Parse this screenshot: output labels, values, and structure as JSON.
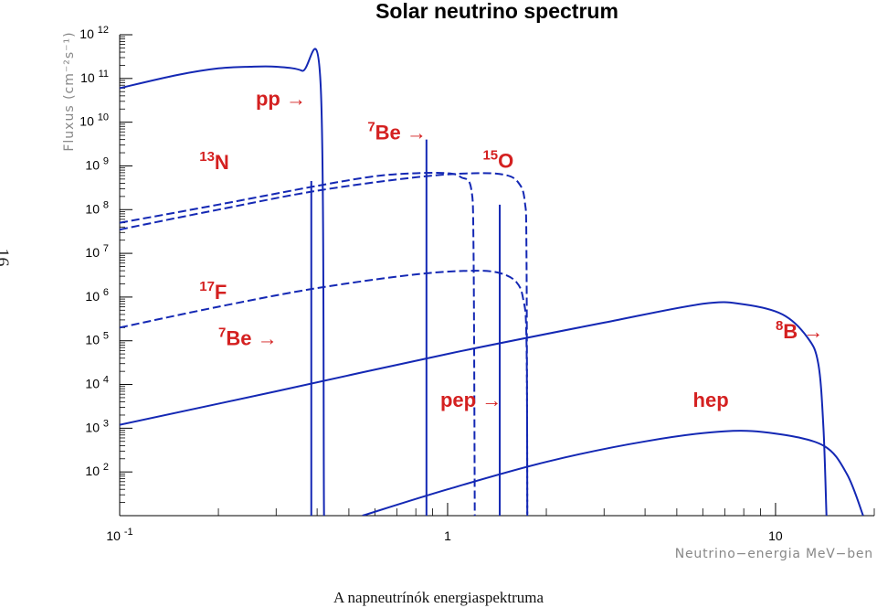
{
  "page_number": "16",
  "caption": "A napneutrínók energiaspektruma",
  "chart_data": {
    "type": "line",
    "title": "Solar neutrino spectrum",
    "xlabel": "Neutrino−energia MeV−ben",
    "ylabel": "Fluxus (cm⁻²s⁻¹)",
    "x_scale": "log",
    "y_scale": "log",
    "xlim": [
      0.1,
      20
    ],
    "ylim": [
      10,
      1000000000000.0
    ],
    "x_ticks": [
      {
        "value": 0.1,
        "base": "10",
        "exp": "-1"
      },
      {
        "value": 1,
        "base": "1",
        "exp": ""
      },
      {
        "value": 10,
        "base": "10",
        "exp": ""
      }
    ],
    "y_ticks": [
      {
        "value": 100.0,
        "base": "10",
        "exp": "2"
      },
      {
        "value": 1000.0,
        "base": "10",
        "exp": "3"
      },
      {
        "value": 10000.0,
        "base": "10",
        "exp": "4"
      },
      {
        "value": 100000.0,
        "base": "10",
        "exp": "5"
      },
      {
        "value": 1000000.0,
        "base": "10",
        "exp": "6"
      },
      {
        "value": 10000000.0,
        "base": "10",
        "exp": "7"
      },
      {
        "value": 100000000.0,
        "base": "10",
        "exp": "8"
      },
      {
        "value": 1000000000.0,
        "base": "10",
        "exp": "9"
      },
      {
        "value": 10000000000.0,
        "base": "10",
        "exp": "10"
      },
      {
        "value": 100000000000.0,
        "base": "10",
        "exp": "11"
      },
      {
        "value": 1000000000000.0,
        "base": "10",
        "exp": "12"
      }
    ],
    "line_color": "#1428b4",
    "label_color": "#d42020",
    "series": [
      {
        "id": "pp",
        "style": "solid",
        "points": [
          [
            0.1,
            60000000000.0
          ],
          [
            0.15,
            120000000000.0
          ],
          [
            0.2,
            170000000000.0
          ],
          [
            0.25,
            185000000000.0
          ],
          [
            0.3,
            185000000000.0
          ],
          [
            0.36,
            150000000000.0
          ],
          [
            0.41,
            70000000000.0
          ],
          [
            0.42,
            10
          ],
          [
            0.423,
            10
          ]
        ]
      },
      {
        "id": "13N",
        "style": "dashed",
        "points": [
          [
            0.1,
            50000000.0
          ],
          [
            0.2,
            130000000.0
          ],
          [
            0.4,
            350000000.0
          ],
          [
            0.6,
            580000000.0
          ],
          [
            0.8,
            680000000.0
          ],
          [
            1.0,
            680000000.0
          ],
          [
            1.1,
            550000000.0
          ],
          [
            1.18,
            300000000.0
          ],
          [
            1.2,
            10000000.0
          ],
          [
            1.21,
            10
          ]
        ]
      },
      {
        "id": "15O",
        "style": "dashed",
        "points": [
          [
            0.1,
            35000000.0
          ],
          [
            0.2,
            100000000.0
          ],
          [
            0.4,
            270000000.0
          ],
          [
            0.8,
            550000000.0
          ],
          [
            1.2,
            680000000.0
          ],
          [
            1.5,
            620000000.0
          ],
          [
            1.65,
            400000000.0
          ],
          [
            1.72,
            150000000.0
          ],
          [
            1.74,
            10000000.0
          ],
          [
            1.75,
            10
          ]
        ]
      },
      {
        "id": "17F",
        "style": "dashed",
        "points": [
          [
            0.1,
            200000.0
          ],
          [
            0.2,
            600000.0
          ],
          [
            0.4,
            1600000.0
          ],
          [
            0.8,
            3300000.0
          ],
          [
            1.2,
            4000000.0
          ],
          [
            1.45,
            3500000.0
          ],
          [
            1.62,
            2200000.0
          ],
          [
            1.7,
            900000.0
          ],
          [
            1.74,
            100000.0
          ],
          [
            1.75,
            10
          ]
        ]
      },
      {
        "id": "8B",
        "style": "solid",
        "points": [
          [
            0.1,
            1200.0
          ],
          [
            0.3,
            7000.0
          ],
          [
            1,
            50000.0
          ],
          [
            3,
            260000.0
          ],
          [
            6,
            700000.0
          ],
          [
            8,
            680000.0
          ],
          [
            10.5,
            400000.0
          ],
          [
            12.5,
            120000.0
          ],
          [
            13.5,
            30000.0
          ],
          [
            14,
            1000.0
          ],
          [
            14.3,
            10
          ]
        ]
      },
      {
        "id": "hep",
        "style": "solid",
        "points": [
          [
            0.55,
            10
          ],
          [
            1,
            40
          ],
          [
            2,
            170
          ],
          [
            4,
            500
          ],
          [
            7,
            850
          ],
          [
            10,
            750
          ],
          [
            14,
            400
          ],
          [
            16.5,
            90
          ],
          [
            18.5,
            10
          ]
        ]
      }
    ],
    "lines": [
      {
        "id": "7Be-low",
        "energy": 0.384,
        "flux": 450000000.0
      },
      {
        "id": "7Be-high",
        "energy": 0.862,
        "flux": 4000000000.0
      },
      {
        "id": "pep",
        "energy": 1.442,
        "flux": 130000000.0
      }
    ],
    "annotations": [
      {
        "id": "pp",
        "sup": "",
        "text": "pp",
        "arrow": "→",
        "x": 0.26,
        "y": 24000000000.0
      },
      {
        "id": "13N",
        "sup": "13",
        "text": "N",
        "arrow": "",
        "x": 0.175,
        "y": 850000000.0
      },
      {
        "id": "7Be-high",
        "sup": "7",
        "text": "Be",
        "arrow": "→",
        "x": 0.57,
        "y": 4000000000.0
      },
      {
        "id": "15O",
        "sup": "15",
        "text": "O",
        "arrow": "",
        "x": 1.28,
        "y": 900000000.0
      },
      {
        "id": "17F",
        "sup": "17",
        "text": "F",
        "arrow": "",
        "x": 0.175,
        "y": 900000.0
      },
      {
        "id": "7Be-low",
        "sup": "7",
        "text": "Be",
        "arrow": "→",
        "x": 0.2,
        "y": 80000.0
      },
      {
        "id": "8B",
        "sup": "8",
        "text": "B",
        "arrow": "→",
        "x": 10.0,
        "y": 115000.0
      },
      {
        "id": "pep",
        "sup": "",
        "text": "pep",
        "arrow": "→",
        "x": 0.95,
        "y": 3100.0
      },
      {
        "id": "hep",
        "sup": "",
        "text": "hep",
        "arrow": "",
        "x": 5.6,
        "y": 3100.0
      }
    ]
  }
}
